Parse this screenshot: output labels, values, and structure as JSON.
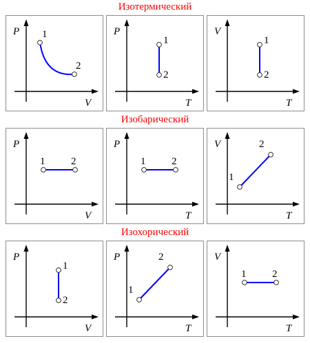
{
  "sections": [
    {
      "title": "Изотермический",
      "panels": [
        {
          "y_axis": "P",
          "x_axis": "V",
          "curve": "hyperbola",
          "points": [
            {
              "label": "1"
            },
            {
              "label": "2"
            }
          ]
        },
        {
          "y_axis": "P",
          "x_axis": "T",
          "curve": "vertical-down",
          "points": [
            {
              "label": "1"
            },
            {
              "label": "2"
            }
          ]
        },
        {
          "y_axis": "V",
          "x_axis": "T",
          "curve": "vertical-up",
          "points": [
            {
              "label": "2"
            },
            {
              "label": "1"
            }
          ]
        }
      ]
    },
    {
      "title": "Изобарический",
      "panels": [
        {
          "y_axis": "P",
          "x_axis": "V",
          "curve": "horizontal",
          "points": [
            {
              "label": "1"
            },
            {
              "label": "2"
            }
          ]
        },
        {
          "y_axis": "P",
          "x_axis": "T",
          "curve": "horizontal",
          "points": [
            {
              "label": "1"
            },
            {
              "label": "2"
            }
          ]
        },
        {
          "y_axis": "V",
          "x_axis": "T",
          "curve": "diagonal-up",
          "points": [
            {
              "label": "1"
            },
            {
              "label": "2"
            }
          ]
        }
      ]
    },
    {
      "title": "Изохорический",
      "panels": [
        {
          "y_axis": "P",
          "x_axis": "V",
          "curve": "vertical-up",
          "points": [
            {
              "label": "2"
            },
            {
              "label": "1"
            }
          ]
        },
        {
          "y_axis": "P",
          "x_axis": "T",
          "curve": "diagonal-up",
          "points": [
            {
              "label": "1"
            },
            {
              "label": "2"
            }
          ]
        },
        {
          "y_axis": "V",
          "x_axis": "T",
          "curve": "horizontal",
          "points": [
            {
              "label": "1"
            },
            {
              "label": "2"
            }
          ]
        }
      ]
    }
  ],
  "colors": {
    "title": "#ff0000",
    "curve": "#0000ff",
    "axis": "#000000",
    "border": "#8c8c8c"
  }
}
